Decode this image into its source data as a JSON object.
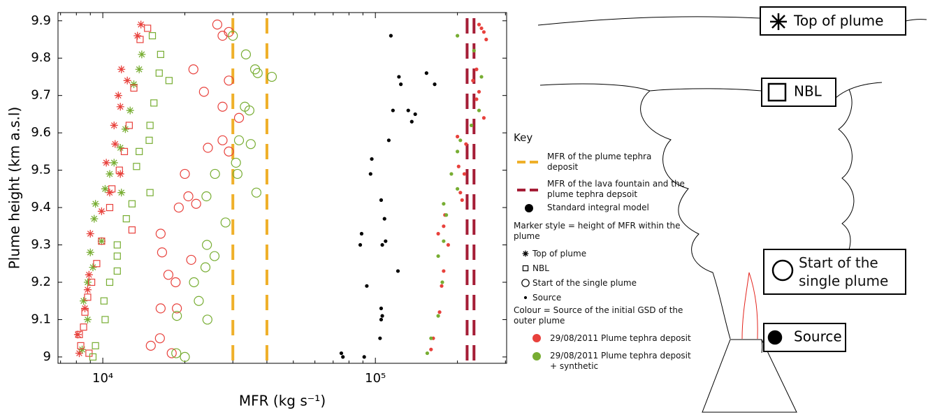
{
  "chart_data": {
    "type": "scatter",
    "xlabel": "MFR (kg s⁻¹)",
    "ylabel": "Plume height (km a.s.l)",
    "xscale": "log",
    "xlim": [
      6850,
      303000
    ],
    "ylim": [
      8.983,
      9.922
    ],
    "xticks": [
      {
        "value": 10000,
        "label": "10⁴"
      },
      {
        "value": 100000,
        "label": "10⁵"
      }
    ],
    "yticks": [
      9,
      9.1,
      9.2,
      9.3,
      9.4,
      9.5,
      9.6,
      9.7,
      9.8,
      9.9
    ],
    "reference_lines": [
      {
        "x": 30000,
        "color": "#efb02a"
      },
      {
        "x": 40000,
        "color": "#efb02a"
      },
      {
        "x": 217000,
        "color": "#a51d36"
      },
      {
        "x": 230000,
        "color": "#a51d36"
      }
    ],
    "series": [
      {
        "color": "#e8413c",
        "marker": "star",
        "x": [
          13800,
          13400,
          11700,
          12300,
          11400,
          11600,
          11000,
          11100,
          10300,
          11600,
          10600,
          9900,
          9000,
          8900,
          8800,
          8600,
          8100,
          8200
        ],
        "y": [
          9.89,
          9.86,
          9.77,
          9.74,
          9.7,
          9.67,
          9.62,
          9.57,
          9.52,
          9.49,
          9.44,
          9.39,
          9.33,
          9.22,
          9.18,
          9.13,
          9.06,
          9.01
        ]
      },
      {
        "color": "#77ad32",
        "marker": "star",
        "x": [
          13900,
          13600,
          13000,
          12600,
          12100,
          11600,
          11000,
          10600,
          10200,
          11700,
          9400,
          9300,
          9900,
          9000,
          9200,
          8800,
          8500,
          8800,
          8400
        ],
        "y": [
          9.81,
          9.77,
          9.73,
          9.66,
          9.61,
          9.56,
          9.52,
          9.49,
          9.45,
          9.44,
          9.41,
          9.37,
          9.31,
          9.28,
          9.24,
          9.2,
          9.15,
          9.1,
          9.02
        ]
      },
      {
        "color": "#e8413c",
        "marker": "square",
        "x": [
          14600,
          13700,
          13000,
          12500,
          12000,
          11500,
          10800,
          10600,
          12800,
          9900,
          9500,
          9100,
          8800,
          8600,
          8500,
          8200,
          8900,
          8300
        ],
        "y": [
          9.88,
          9.85,
          9.72,
          9.62,
          9.55,
          9.5,
          9.45,
          9.4,
          9.34,
          9.31,
          9.25,
          9.2,
          9.16,
          9.12,
          9.08,
          9.06,
          9.01,
          9.03
        ]
      },
      {
        "color": "#77ad32",
        "marker": "square",
        "x": [
          15200,
          16300,
          16100,
          17500,
          15400,
          14900,
          14800,
          13600,
          13300,
          14900,
          12800,
          12200,
          11300,
          11300,
          11300,
          10600,
          10100,
          10200,
          9400,
          9200
        ],
        "y": [
          9.86,
          9.81,
          9.76,
          9.74,
          9.68,
          9.62,
          9.58,
          9.55,
          9.51,
          9.44,
          9.41,
          9.37,
          9.3,
          9.27,
          9.23,
          9.2,
          9.15,
          9.1,
          9.03,
          9.0
        ]
      },
      {
        "color": "#e8413c",
        "marker": "circle",
        "x": [
          26300,
          29000,
          27500,
          21500,
          29000,
          23500,
          27500,
          31600,
          27500,
          24300,
          29000,
          20000,
          20600,
          22000,
          19000,
          16300,
          16500,
          21100,
          17400,
          18500,
          16300,
          18700,
          15000,
          16200,
          17900
        ],
        "y": [
          9.89,
          9.87,
          9.86,
          9.77,
          9.74,
          9.71,
          9.67,
          9.64,
          9.58,
          9.56,
          9.55,
          9.49,
          9.43,
          9.41,
          9.4,
          9.33,
          9.28,
          9.26,
          9.22,
          9.2,
          9.13,
          9.13,
          9.03,
          9.05,
          9.01
        ]
      },
      {
        "color": "#77ad32",
        "marker": "circle",
        "x": [
          30000,
          33500,
          36200,
          37000,
          41700,
          33200,
          34500,
          31600,
          34900,
          30800,
          31200,
          25800,
          24000,
          36600,
          28200,
          24100,
          23800,
          25700,
          21600,
          22500,
          18700,
          24200,
          18600,
          20000
        ],
        "y": [
          9.86,
          9.81,
          9.77,
          9.76,
          9.75,
          9.67,
          9.66,
          9.58,
          9.57,
          9.52,
          9.49,
          9.49,
          9.43,
          9.44,
          9.36,
          9.3,
          9.24,
          9.27,
          9.2,
          9.15,
          9.11,
          9.1,
          9.01,
          9.0
        ]
      },
      {
        "color": "#000000",
        "marker": "dot",
        "x": [
          114000,
          122000,
          124000,
          154000,
          165000,
          116000,
          132000,
          136000,
          140000,
          112000,
          97000,
          96000,
          105000,
          108000,
          89000,
          88000,
          106000,
          109000,
          121000,
          93000,
          105000,
          105000,
          106000,
          104000,
          75000,
          76000,
          91000
        ],
        "y": [
          9.86,
          9.75,
          9.73,
          9.76,
          9.73,
          9.66,
          9.66,
          9.63,
          9.65,
          9.58,
          9.53,
          9.49,
          9.42,
          9.37,
          9.33,
          9.3,
          9.3,
          9.31,
          9.23,
          9.19,
          9.13,
          9.1,
          9.11,
          9.05,
          9.01,
          9.0,
          9.0
        ]
      },
      {
        "color": "#e8413c",
        "marker": "dot",
        "x": [
          240000,
          245000,
          250000,
          255000,
          235000,
          228000,
          240000,
          235000,
          250000,
          200000,
          215000,
          202000,
          212000,
          205000,
          208000,
          180000,
          178000,
          170000,
          185000,
          178000,
          175000,
          172000,
          163000,
          160000
        ],
        "y": [
          9.89,
          9.88,
          9.87,
          9.85,
          9.77,
          9.74,
          9.71,
          9.69,
          9.64,
          9.59,
          9.57,
          9.51,
          9.49,
          9.44,
          9.42,
          9.38,
          9.35,
          9.33,
          9.3,
          9.23,
          9.19,
          9.12,
          9.05,
          9.02
        ]
      },
      {
        "color": "#77ad32",
        "marker": "dot",
        "x": [
          200000,
          230000,
          245000,
          240000,
          225000,
          205000,
          200000,
          190000,
          200000,
          178000,
          182000,
          178000,
          170000,
          176000,
          170000,
          160000,
          155000
        ],
        "y": [
          9.86,
          9.82,
          9.75,
          9.66,
          9.62,
          9.58,
          9.55,
          9.49,
          9.45,
          9.41,
          9.38,
          9.31,
          9.27,
          9.2,
          9.11,
          9.05,
          9.01
        ]
      }
    ]
  },
  "key": {
    "title": "Key",
    "lines": [
      {
        "text": "MFR of the plume tephra deposit",
        "color": "#efb02a"
      },
      {
        "text": "MFR of the lava fountain and the plume tephra depsoit",
        "color": "#a51d36"
      }
    ],
    "model": "Standard integral model",
    "marker_title": "Marker style = height of MFR within the plume",
    "markers": [
      {
        "text": "Top of plume",
        "marker": "star"
      },
      {
        "text": "NBL",
        "marker": "square"
      },
      {
        "text": "Start of the single plume",
        "marker": "circle"
      },
      {
        "text": "Source",
        "marker": "dot"
      }
    ],
    "colour_title": "Colour = Source of the initial GSD of the outer plume",
    "colours": [
      {
        "text": "29/08/2011 Plume tephra deposit",
        "color": "#e8413c"
      },
      {
        "text": "29/08/2011 Plume tephra deposit + synthetic",
        "color": "#77ad32"
      }
    ]
  },
  "diagram": {
    "top": "Top of plume",
    "nbl": "NBL",
    "start": "Start of the single plume",
    "source": "Source"
  }
}
